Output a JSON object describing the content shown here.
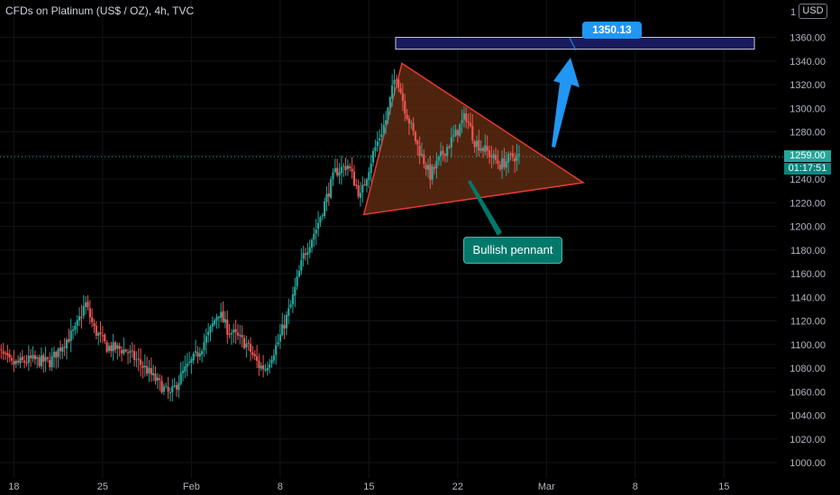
{
  "header": {
    "title": "CFDs on Platinum (US$ / OZ), 4h, TVC",
    "currency": "USD"
  },
  "annotations": {
    "target_label": "1350.13",
    "pattern_label": "Bullish pennant",
    "price_tag": "1259.00",
    "countdown_tag": "01:17:51"
  },
  "colors": {
    "up": "#26a69a",
    "down": "#ef5350",
    "pennant_stroke": "#e53935",
    "pennant_fill": "#5d2a10",
    "target_box": "#1a1a5e",
    "arrow": "#2196f3",
    "label": "#00796b"
  },
  "chart_data": {
    "type": "candlestick",
    "title": "CFDs on Platinum (US$ / OZ), 4h, TVC",
    "ylim": [
      995,
      1382
    ],
    "y_ticks": [
      1000,
      1020,
      1040,
      1060,
      1080,
      1100,
      1120,
      1140,
      1160,
      1180,
      1200,
      1220,
      1240,
      1260,
      1280,
      1300,
      1320,
      1340,
      1360
    ],
    "x_tick_labels": [
      "18",
      "25",
      "Feb",
      "8",
      "15",
      "22",
      "Mar",
      "8",
      "15"
    ],
    "x_tick_days": [
      0,
      7,
      14,
      21,
      28,
      35,
      42,
      49,
      56
    ],
    "last_price": 1259.0,
    "target_price": 1350.13,
    "target_zone": {
      "from": 1350,
      "to": 1360
    },
    "pennant": {
      "apex": {
        "day": 30.6,
        "price": 1338
      },
      "lower_start": {
        "day": 27.6,
        "price": 1210
      },
      "tip": {
        "day": 44.9,
        "price": 1237
      }
    },
    "path_keyframes": [
      [
        -1.5,
        1099
      ],
      [
        0.0,
        1083
      ],
      [
        1.5,
        1087
      ],
      [
        3.0,
        1085
      ],
      [
        4.0,
        1100
      ],
      [
        5.0,
        1112
      ],
      [
        5.8,
        1135
      ],
      [
        6.5,
        1113
      ],
      [
        7.5,
        1098
      ],
      [
        9.0,
        1095
      ],
      [
        10.5,
        1080
      ],
      [
        11.5,
        1068
      ],
      [
        12.5,
        1057
      ],
      [
        13.5,
        1076
      ],
      [
        14.5,
        1090
      ],
      [
        15.5,
        1108
      ],
      [
        16.3,
        1128
      ],
      [
        17.0,
        1113
      ],
      [
        18.5,
        1100
      ],
      [
        19.5,
        1082
      ],
      [
        20.0,
        1080
      ],
      [
        21.0,
        1102
      ],
      [
        22.0,
        1133
      ],
      [
        23.0,
        1175
      ],
      [
        24.0,
        1198
      ],
      [
        25.5,
        1246
      ],
      [
        26.5,
        1252
      ],
      [
        27.5,
        1225
      ],
      [
        28.5,
        1262
      ],
      [
        29.5,
        1290
      ],
      [
        30.3,
        1330
      ],
      [
        31.0,
        1300
      ],
      [
        32.0,
        1268
      ],
      [
        33.0,
        1243
      ],
      [
        34.0,
        1262
      ],
      [
        35.0,
        1278
      ],
      [
        35.8,
        1294
      ],
      [
        36.5,
        1272
      ],
      [
        37.5,
        1263
      ],
      [
        38.5,
        1252
      ],
      [
        39.5,
        1259
      ],
      [
        40.0,
        1259
      ]
    ]
  }
}
